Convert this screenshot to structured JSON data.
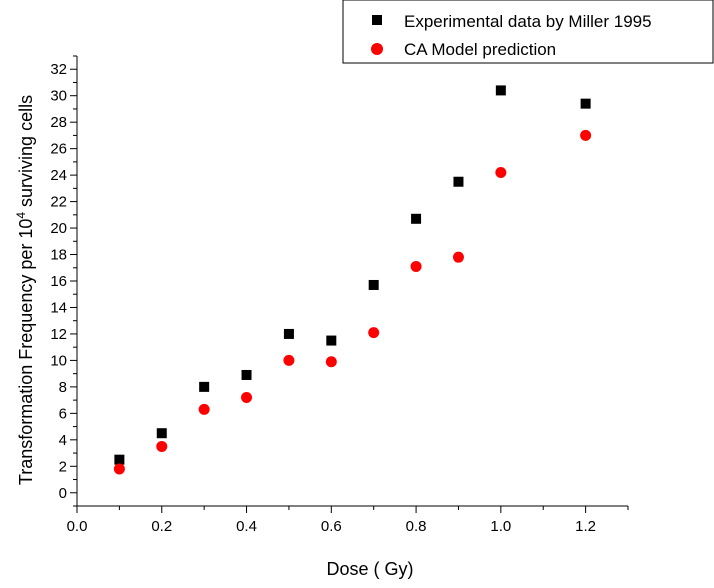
{
  "chart_data": {
    "type": "scatter",
    "title": "",
    "xlabel": "Dose ( Gy)",
    "ylabel_parts": [
      "Transformation Frequency per 10",
      "4",
      " surviving cells"
    ],
    "xlim": [
      0.0,
      1.3
    ],
    "ylim": [
      -1,
      33
    ],
    "x_ticks": [
      0.0,
      0.2,
      0.4,
      0.6,
      0.8,
      1.0,
      1.2
    ],
    "x_tick_labels": [
      "0.0",
      "0.2",
      "0.4",
      "0.6",
      "0.8",
      "1.0",
      "1.2"
    ],
    "y_ticks": [
      0,
      2,
      4,
      6,
      8,
      10,
      12,
      14,
      16,
      18,
      20,
      22,
      24,
      26,
      28,
      30,
      32
    ],
    "y_tick_labels": [
      "0",
      "2",
      "4",
      "6",
      "8",
      "10",
      "12",
      "14",
      "16",
      "18",
      "20",
      "22",
      "24",
      "26",
      "28",
      "30",
      "32"
    ],
    "grid": false,
    "legend_position": "top-right",
    "series": [
      {
        "name": "Experimental data by Miller 1995",
        "marker": "square",
        "color": "#000000",
        "x": [
          0.1,
          0.2,
          0.3,
          0.4,
          0.5,
          0.6,
          0.7,
          0.8,
          0.9,
          1.0,
          1.2
        ],
        "y": [
          2.5,
          4.5,
          8.0,
          8.9,
          12.0,
          11.5,
          15.7,
          20.7,
          23.5,
          30.4,
          29.4
        ]
      },
      {
        "name": "CA Model prediction",
        "marker": "circle",
        "color": "#ff0000",
        "x": [
          0.1,
          0.2,
          0.3,
          0.4,
          0.5,
          0.6,
          0.7,
          0.8,
          0.9,
          1.0,
          1.2
        ],
        "y": [
          1.8,
          3.5,
          6.3,
          7.2,
          10.0,
          9.9,
          12.1,
          17.1,
          17.8,
          24.2,
          27.0
        ]
      }
    ]
  }
}
